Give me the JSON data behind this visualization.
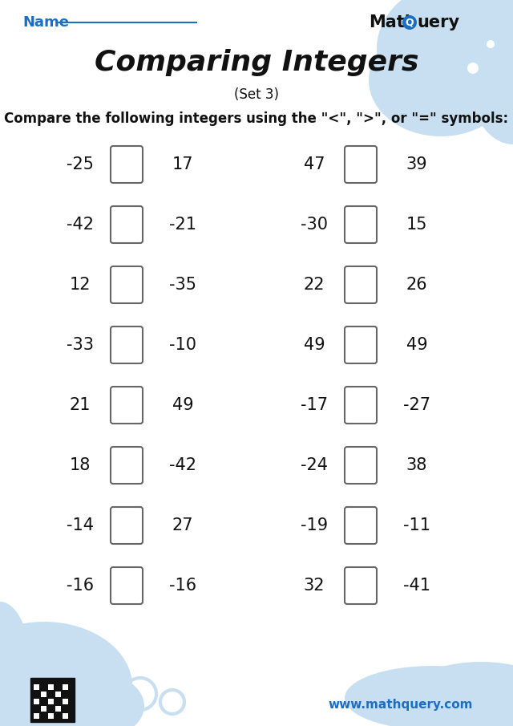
{
  "title": "Comparing Integers",
  "subtitle": "(Set 3)",
  "instruction": "Compare the following integers using the \"<\", \">\", or \"=\" symbols:",
  "name_label": "Name",
  "website": "www.mathquery.com",
  "background_color": "#ffffff",
  "accent_color": "#c8dff2",
  "blue_color": "#1a6fc4",
  "title_font_size": 26,
  "subtitle_font_size": 12,
  "instruction_font_size": 12,
  "number_font_size": 15,
  "pairs_left": [
    [
      "-25",
      "17"
    ],
    [
      "-42",
      "-21"
    ],
    [
      "12",
      "-35"
    ],
    [
      "-33",
      "-10"
    ],
    [
      "21",
      "49"
    ],
    [
      "18",
      "-42"
    ],
    [
      "-14",
      "27"
    ],
    [
      "-16",
      "-16"
    ]
  ],
  "pairs_right": [
    [
      "47",
      "39"
    ],
    [
      "-30",
      "15"
    ],
    [
      "22",
      "26"
    ],
    [
      "49",
      "49"
    ],
    [
      "-17",
      "-27"
    ],
    [
      "-24",
      "38"
    ],
    [
      "-19",
      "-11"
    ],
    [
      "32",
      "-41"
    ]
  ]
}
